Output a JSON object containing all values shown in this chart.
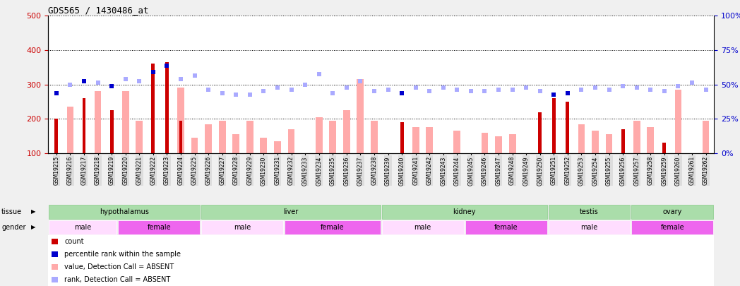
{
  "title": "GDS565 / 1430486_at",
  "samples": [
    "GSM19215",
    "GSM19216",
    "GSM19217",
    "GSM19218",
    "GSM19219",
    "GSM19220",
    "GSM19221",
    "GSM19222",
    "GSM19223",
    "GSM19224",
    "GSM19225",
    "GSM19226",
    "GSM19227",
    "GSM19228",
    "GSM19229",
    "GSM19230",
    "GSM19231",
    "GSM19232",
    "GSM19233",
    "GSM19234",
    "GSM19235",
    "GSM19236",
    "GSM19237",
    "GSM19238",
    "GSM19239",
    "GSM19240",
    "GSM19241",
    "GSM19242",
    "GSM19243",
    "GSM19244",
    "GSM19245",
    "GSM19246",
    "GSM19247",
    "GSM19248",
    "GSM19249",
    "GSM19250",
    "GSM19251",
    "GSM19252",
    "GSM19253",
    "GSM19254",
    "GSM19255",
    "GSM19256",
    "GSM19257",
    "GSM19258",
    "GSM19259",
    "GSM19260",
    "GSM19261",
    "GSM19262"
  ],
  "count_values": [
    200,
    null,
    260,
    null,
    225,
    null,
    null,
    360,
    365,
    195,
    null,
    null,
    null,
    null,
    null,
    null,
    null,
    null,
    null,
    null,
    null,
    null,
    null,
    null,
    null,
    190,
    null,
    null,
    null,
    null,
    null,
    null,
    null,
    null,
    null,
    220,
    260,
    250,
    null,
    null,
    null,
    170,
    null,
    null,
    130,
    null,
    100,
    null
  ],
  "absent_values": [
    null,
    235,
    null,
    280,
    null,
    280,
    195,
    null,
    null,
    290,
    145,
    185,
    195,
    155,
    195,
    145,
    135,
    170,
    null,
    205,
    195,
    225,
    315,
    195,
    null,
    null,
    175,
    175,
    null,
    165,
    null,
    160,
    150,
    155,
    null,
    null,
    null,
    null,
    185,
    165,
    155,
    null,
    195,
    175,
    null,
    285,
    null,
    195
  ],
  "percentile_values": [
    275,
    null,
    310,
    null,
    295,
    null,
    null,
    335,
    355,
    null,
    null,
    null,
    null,
    null,
    null,
    null,
    null,
    null,
    null,
    null,
    null,
    null,
    null,
    null,
    null,
    275,
    null,
    null,
    null,
    null,
    null,
    null,
    null,
    null,
    null,
    null,
    270,
    275,
    null,
    null,
    null,
    null,
    null,
    null,
    null,
    null,
    null,
    null
  ],
  "absent_rank_values": [
    null,
    300,
    null,
    305,
    null,
    315,
    310,
    null,
    null,
    315,
    325,
    285,
    275,
    270,
    270,
    280,
    290,
    285,
    300,
    330,
    275,
    290,
    310,
    280,
    285,
    null,
    290,
    280,
    290,
    285,
    280,
    280,
    285,
    285,
    290,
    280,
    null,
    null,
    285,
    290,
    285,
    295,
    290,
    285,
    280,
    295,
    305,
    285
  ],
  "ylim_left": [
    100,
    500
  ],
  "ylim_right": [
    0,
    100
  ],
  "yticks_left": [
    100,
    200,
    300,
    400,
    500
  ],
  "yticks_right": [
    0,
    25,
    50,
    75,
    100
  ],
  "color_count": "#cc0000",
  "color_absent": "#ffaaaa",
  "color_percentile": "#0000cc",
  "color_absent_rank": "#aaaaff",
  "color_tissue_bg": "#aaddaa",
  "color_tissue_border": "#88cc88",
  "color_gender_male_bg": "#ffddff",
  "color_gender_female_bg": "#ee66ee",
  "color_xtick_bg": "#dddddd",
  "tissue_groups": [
    {
      "label": "hypothalamus",
      "start": 0,
      "end": 11
    },
    {
      "label": "liver",
      "start": 11,
      "end": 24
    },
    {
      "label": "kidney",
      "start": 24,
      "end": 36
    },
    {
      "label": "testis",
      "start": 36,
      "end": 42
    },
    {
      "label": "ovary",
      "start": 42,
      "end": 48
    }
  ],
  "gender_groups": [
    {
      "label": "male",
      "start": 0,
      "end": 5,
      "female": false
    },
    {
      "label": "female",
      "start": 5,
      "end": 11,
      "female": true
    },
    {
      "label": "male",
      "start": 11,
      "end": 17,
      "female": false
    },
    {
      "label": "female",
      "start": 17,
      "end": 24,
      "female": true
    },
    {
      "label": "male",
      "start": 24,
      "end": 30,
      "female": false
    },
    {
      "label": "female",
      "start": 30,
      "end": 36,
      "female": true
    },
    {
      "label": "male",
      "start": 36,
      "end": 42,
      "female": false
    },
    {
      "label": "female",
      "start": 42,
      "end": 48,
      "female": true
    }
  ],
  "legend_items": [
    {
      "color": "#cc0000",
      "label": "count"
    },
    {
      "color": "#0000cc",
      "label": "percentile rank within the sample"
    },
    {
      "color": "#ffaaaa",
      "label": "value, Detection Call = ABSENT"
    },
    {
      "color": "#aaaaff",
      "label": "rank, Detection Call = ABSENT"
    }
  ],
  "background_color": "#f0f0f0",
  "plot_bg_color": "#ffffff"
}
